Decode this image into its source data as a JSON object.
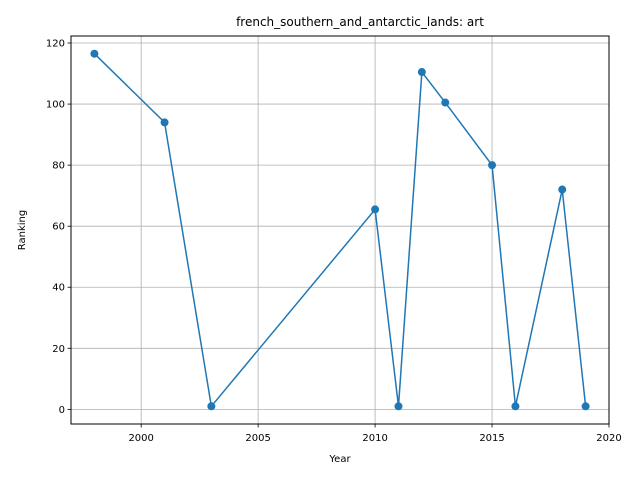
{
  "chart_data": {
    "type": "line",
    "title": "french_southern_and_antarctic_lands: art",
    "xlabel": "Year",
    "ylabel": "Ranking",
    "xlim": [
      1997,
      2020
    ],
    "ylim": [
      -4.8,
      122.3
    ],
    "xticks": [
      2000,
      2005,
      2010,
      2015,
      2020
    ],
    "yticks": [
      0,
      20,
      40,
      60,
      80,
      100,
      120
    ],
    "grid": true,
    "series": [
      {
        "color": "#1f77b4",
        "marker": "circle",
        "x": [
          1998,
          2001,
          2003,
          2010,
          2011,
          2012,
          2013,
          2015,
          2016,
          2018,
          2019
        ],
        "y": [
          116.5,
          94,
          1,
          65.5,
          1,
          110.5,
          100.5,
          80,
          1,
          72,
          1
        ]
      }
    ]
  }
}
